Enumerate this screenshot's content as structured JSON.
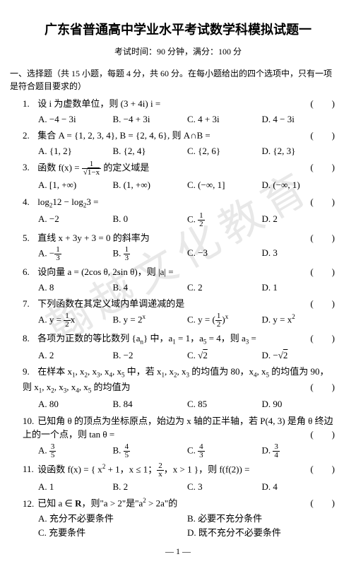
{
  "title": "广东省普通高中学业水平考试数学科模拟试题一",
  "subhead": "考试时间：90 分钟，满分：100 分",
  "section": "一、选择题（共 15 小题，每题 4 分，共 60 分。在每小题给出的四个选项中，只有一项是符合题目要求的）",
  "questions": [
    {
      "n": "1.",
      "stem": "设 i 为虚数单位，则 (3 + 4i) i =",
      "opts": [
        "A. −4 − 3i",
        "B. −4 + 3i",
        "C. 4 + 3i",
        "D. 4 − 3i"
      ]
    },
    {
      "n": "2.",
      "stem": "集合 A = {1, 2, 3, 4}, B = {2, 4, 6}, 则 A∩B =",
      "opts": [
        "A. {1, 2}",
        "B. {2, 4}",
        "C. {2, 6}",
        "D. {2, 3}"
      ]
    },
    {
      "n": "3.",
      "stem_html": "函数 f(x) = <span class='frac'><span class='num'>1</span><span class='den'>√<span class='sq'>1−x</span></span></span> 的定义域是",
      "opts": [
        "A. [1, +∞)",
        "B. (1, +∞)",
        "C. (−∞, 1]",
        "D. (−∞, 1)"
      ]
    },
    {
      "n": "4.",
      "stem_html": "log<sub>2</sub>12 − log<sub>2</sub>3 =",
      "opts_html": [
        "A. −2",
        "B. 0",
        "C. <span class='frac'><span class='num'>1</span><span class='den'>2</span></span>",
        "D. 2"
      ]
    },
    {
      "n": "5.",
      "stem": "直线 x + 3y + 3 = 0 的斜率为",
      "opts_html": [
        "A. −<span class='frac'><span class='num'>1</span><span class='den'>3</span></span>",
        "B. <span class='frac'><span class='num'>1</span><span class='den'>3</span></span>",
        "C. −3",
        "D. 3"
      ]
    },
    {
      "n": "6.",
      "stem": "设向量 a = (2cos θ, 2sin θ)，则 |a| =",
      "opts": [
        "A. 8",
        "B. 4",
        "C. 2",
        "D. 1"
      ]
    },
    {
      "n": "7.",
      "stem": "下列函数在其定义域内单调递减的是",
      "opts_html": [
        "A. y = <span class='frac'><span class='num'>1</span><span class='den'>2</span></span>x",
        "B. y = 2<sup>x</sup>",
        "C. y = (<span class='frac'><span class='num'>1</span><span class='den'>2</span></span>)<sup>x</sup>",
        "D. y = x<sup>2</sup>"
      ]
    },
    {
      "n": "8.",
      "stem_html": "各项为正数的等比数列 {a<sub>n</sub>} 中，a<sub>1</sub> = 1，a<sub>5</sub> = 4，则 a<sub>3</sub> =",
      "opts_html": [
        "A. 2",
        "B. −2",
        "C. √<span class='sq'>2</span>",
        "D. −√<span class='sq'>2</span>"
      ]
    },
    {
      "n": "9.",
      "stem_html": "在样本 x<sub>1</sub>, x<sub>2</sub>, x<sub>3</sub>, x<sub>4</sub>, x<sub>5</sub> 中，若 x<sub>1</sub>, x<sub>2</sub>, x<sub>3</sub> 的均值为 80，x<sub>4</sub>, x<sub>5</sub> 的均值为 90，则 x<sub>1</sub>, x<sub>2</sub>, x<sub>3</sub>, x<sub>4</sub>, x<sub>5</sub> 的均值为",
      "opts": [
        "A. 80",
        "B. 84",
        "C. 85",
        "D. 90"
      ]
    },
    {
      "n": "10.",
      "stem": "已知角 θ 的顶点为坐标原点，始边为 x 轴的正半轴，若 P(4, 3) 是角 θ 终边上的一个点，则 tan θ =",
      "opts_html": [
        "A. <span class='frac'><span class='num'>3</span><span class='den'>5</span></span>",
        "B. <span class='frac'><span class='num'>4</span><span class='den'>5</span></span>",
        "C. <span class='frac'><span class='num'>4</span><span class='den'>3</span></span>",
        "D. <span class='frac'><span class='num'>3</span><span class='den'>4</span></span>"
      ]
    },
    {
      "n": "11.",
      "stem_html": "设函数 f(x) = { x<sup>2</sup> + 1，x ≤ 1；<span class='frac'><span class='num'>2</span><span class='den'>x</span></span>，x > 1 }，则 f(f(2)) =",
      "opts": [
        "A. 1",
        "B. 2",
        "C. 3",
        "D. 4"
      ]
    },
    {
      "n": "12.",
      "stem_html": "已知 a ∈ <b>R</b>，则\"a > 2\"是\"a<sup>2</sup> > 2a\"的",
      "opts2": true,
      "opts": [
        "A. 充分不必要条件",
        "B. 必要不充分条件",
        "C. 充要条件",
        "D. 既不充分不必要条件"
      ]
    }
  ],
  "pagefoot": "— 1 —",
  "watermark": "翰越文化教育",
  "colors": {
    "text": "#000000",
    "bg": "#ffffff",
    "wm": "#e8e8e8"
  }
}
